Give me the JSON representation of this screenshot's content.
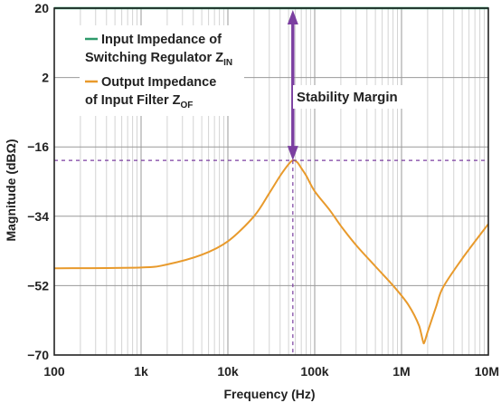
{
  "chart_data": {
    "type": "line",
    "xscale": "log",
    "xlim": [
      100,
      10000000
    ],
    "ylim": [
      -70,
      20
    ],
    "xlabel": "Frequency (Hz)",
    "ylabel": "Magnitude (dBΩ)",
    "x_ticks": [
      100,
      1000,
      10000,
      100000,
      1000000,
      10000000
    ],
    "x_tick_labels": [
      "100",
      "1k",
      "10k",
      "100k",
      "1M",
      "10M"
    ],
    "y_ticks": [
      20,
      2,
      -16,
      -34,
      -52,
      -70
    ],
    "y_tick_labels": [
      "20",
      "2",
      "−16",
      "−34",
      "−52",
      "−70"
    ],
    "grid": true,
    "legend_position": "top-left",
    "series": [
      {
        "name": "Input Impedance of Switching Regulator Z",
        "name_line1": "Input Impedance of",
        "name_line2": "Switching Regulator Z",
        "name_sub": "IN",
        "color": "#2e9a6b",
        "x": [
          100,
          10000000
        ],
        "y": [
          20,
          20
        ]
      },
      {
        "name": "Output Impedance of Input Filter Z",
        "name_line1": "Output Impedance",
        "name_line2": "of Input Filter Z",
        "name_sub": "OF",
        "color": "#e89a2c",
        "x": [
          100,
          1000,
          2000,
          5000,
          10000,
          20000,
          30000,
          40000,
          50000,
          56000,
          63000,
          70000,
          80000,
          100000,
          150000,
          200000,
          300000,
          500000,
          800000,
          1200000,
          1600000,
          1800000,
          2000000,
          2500000,
          3000000,
          5000000,
          10000000
        ],
        "y": [
          -47.5,
          -47.3,
          -46.5,
          -44,
          -40.5,
          -34,
          -28,
          -23.5,
          -20.5,
          -19.5,
          -20,
          -21.5,
          -23.5,
          -27.5,
          -32.5,
          -36.5,
          -41.5,
          -47,
          -52,
          -57,
          -62.5,
          -67,
          -64,
          -57.5,
          -52.5,
          -45,
          -36
        ]
      }
    ],
    "annotations": {
      "stability_margin_label": "Stability Margin",
      "stability_margin_x": 56000,
      "stability_margin_top": 20,
      "stability_margin_bottom": -19.5,
      "arrow_color": "#7b3fa0"
    }
  }
}
